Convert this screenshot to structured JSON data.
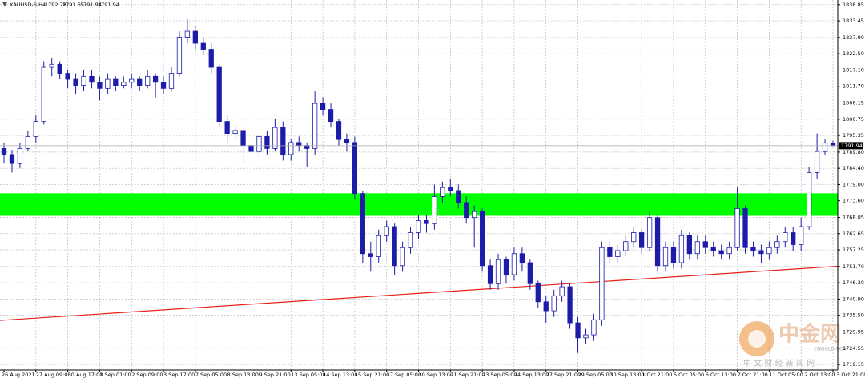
{
  "chart_data": {
    "type": "candlestick",
    "title": "XAUUSD-S,H4",
    "header_values": [
      "1792.78",
      "1793.65",
      "1791.94",
      "1791.94"
    ],
    "color": "#1c1ca8",
    "grid": true,
    "ylim": [
      1717.3,
      1840.4
    ],
    "yticks": [
      1838.85,
      1833.45,
      {
        "value": 1827.9,
        "label": "1827.90"
      },
      {
        "value": 1822.5,
        "label": "1822.50"
      },
      {
        "value": 1817.1,
        "label": "1817.10"
      },
      {
        "value": 1811.7,
        "label": "1811.70"
      },
      1806.15,
      1800.75,
      1795.35,
      {
        "value": 1789.8,
        "label": "1789.80"
      },
      {
        "value": 1784.4,
        "label": "1784.40"
      },
      {
        "value": 1779,
        "label": "1779.00"
      },
      {
        "value": 1773.6,
        "label": "1773.60"
      },
      1768.05,
      1762.65,
      1757.25,
      {
        "value": 1751.7,
        "label": "1751.70"
      },
      {
        "value": 1746.3,
        "label": "1746.30"
      },
      {
        "value": 1740.9,
        "label": "1740.90"
      },
      {
        "value": 1735.5,
        "label": "1735.50"
      },
      1729.95,
      1724.55,
      1719.15
    ],
    "categories": [
      "26 Aug 2021",
      null,
      null,
      null,
      "27 Aug 09:00",
      null,
      null,
      null,
      "30 Aug 17:00",
      null,
      null,
      null,
      "1 Sep 01:00",
      null,
      null,
      null,
      "2 Sep 09:00",
      null,
      null,
      null,
      "3 Sep 17:00",
      null,
      null,
      null,
      "7 Sep 05:00",
      null,
      null,
      null,
      "8 Sep 13:00",
      null,
      null,
      null,
      "9 Sep 21:00",
      null,
      null,
      null,
      "13 Sep 05:00",
      null,
      null,
      null,
      "14 Sep 13:00",
      null,
      null,
      null,
      "15 Sep 21:00",
      null,
      null,
      null,
      "17 Sep 05:00",
      null,
      null,
      null,
      "20 Sep 13:00",
      null,
      null,
      null,
      "21 Sep 21:00",
      null,
      null,
      null,
      "23 Sep 05:00",
      null,
      null,
      null,
      "24 Sep 13:00",
      null,
      null,
      null,
      "27 Sep 21:00",
      null,
      null,
      null,
      "29 Sep 05:00",
      null,
      null,
      null,
      "30 Sep 13:00",
      null,
      null,
      null,
      "1 Oct 21:00",
      null,
      null,
      null,
      "5 Oct 05:00",
      null,
      null,
      null,
      "6 Oct 13:00",
      null,
      null,
      null,
      "7 Oct 21:00",
      null,
      null,
      null,
      "11 Oct 05:00",
      null,
      null,
      null,
      "12 Oct 13:00",
      null,
      null,
      null,
      "13 Oct 21:00"
    ],
    "open": [
      1791,
      1789,
      1786,
      1791,
      1795,
      1800,
      1818,
      1819,
      1816,
      1814,
      1812,
      1815,
      1813,
      1811,
      1814,
      1812,
      1813,
      1814,
      1812,
      1815,
      1813,
      1811,
      1816,
      1828,
      1830,
      1826,
      1824,
      1818,
      1800,
      1796,
      1797,
      1792,
      1790,
      1795,
      1791,
      1798,
      1789,
      1793,
      1792,
      1791,
      1806,
      1804,
      1800,
      1794,
      1793,
      1776,
      1756,
      1755,
      1762,
      1765,
      1752,
      1758,
      1763,
      1767,
      1766,
      1775,
      1778,
      1777,
      1773,
      1768,
      1770,
      1752,
      1746,
      1754,
      1749,
      1756,
      1753,
      1746,
      1740,
      1737,
      1742,
      1745,
      1733,
      1728,
      1729,
      1734,
      1758,
      1755,
      1757,
      1760,
      1763,
      1758,
      1768,
      1752,
      1758,
      1753,
      1762,
      1756,
      1760,
      1758,
      1757,
      1756,
      1758,
      1771,
      1758,
      1757,
      1756,
      1758,
      1760,
      1763,
      1759,
      1765,
      1783,
      1790,
      1792.78
    ],
    "high": [
      1793,
      1790.5,
      1793,
      1797,
      1802,
      1820,
      1821,
      1820,
      1817,
      1816,
      1817,
      1817,
      1815,
      1816,
      1815,
      1815,
      1816,
      1815,
      1817,
      1816,
      1815,
      1818,
      1830,
      1834,
      1832,
      1828,
      1826,
      1819,
      1802,
      1799,
      1798,
      1795,
      1797,
      1797,
      1801,
      1800,
      1794,
      1795,
      1793,
      1810,
      1808,
      1806,
      1801,
      1796,
      1795,
      1777,
      1760,
      1764,
      1767,
      1766,
      1760,
      1765,
      1769,
      1769,
      1779,
      1780,
      1781,
      1779,
      1775,
      1772,
      1771,
      1754,
      1756,
      1755,
      1758,
      1758,
      1754,
      1747,
      1742,
      1744,
      1747,
      1746,
      1735,
      1731,
      1736,
      1760,
      1760,
      1759,
      1762,
      1765,
      1764,
      1770,
      1769,
      1760,
      1760,
      1764,
      1763,
      1762,
      1762,
      1760,
      1759,
      1760,
      1778,
      1772,
      1760,
      1759,
      1760,
      1762,
      1765,
      1765,
      1768,
      1785,
      1796,
      1794,
      1793.65
    ],
    "low": [
      1786,
      1783,
      1784.5,
      1790,
      1793,
      1799,
      1815,
      1814,
      1811,
      1809,
      1810,
      1811,
      1807,
      1809,
      1810,
      1811,
      1811,
      1810,
      1811,
      1808,
      1809,
      1810,
      1815,
      1826,
      1824,
      1822,
      1816,
      1798,
      1793,
      1794,
      1786,
      1788,
      1788,
      1789,
      1790,
      1787,
      1787,
      1790,
      1785,
      1789,
      1802,
      1798,
      1792,
      1790,
      1774,
      1753,
      1750,
      1753,
      1760,
      1749,
      1750,
      1756,
      1761,
      1763,
      1764,
      1773,
      1775,
      1771,
      1766,
      1758,
      1750,
      1744,
      1744,
      1746,
      1747,
      1750,
      1744,
      1738,
      1733,
      1735,
      1740,
      1731,
      1723,
      1726,
      1727,
      1732,
      1753,
      1753,
      1755,
      1758,
      1756,
      1757,
      1750,
      1750,
      1751,
      1751,
      1754,
      1754,
      1756,
      1755,
      1754,
      1754,
      1757,
      1756,
      1755,
      1753,
      1754,
      1756,
      1758,
      1757,
      1757,
      1764,
      1781,
      1789,
      1791.94
    ],
    "close": [
      1789,
      1786,
      1791,
      1795,
      1800,
      1818,
      1819,
      1816,
      1814,
      1812,
      1815,
      1813,
      1811,
      1814,
      1812,
      1813,
      1814,
      1812,
      1815,
      1813,
      1811,
      1816,
      1828,
      1830,
      1826,
      1824,
      1818,
      1800,
      1796,
      1797,
      1792,
      1790,
      1795,
      1791,
      1798,
      1789,
      1793,
      1792,
      1791,
      1806,
      1804,
      1800,
      1794,
      1793,
      1776,
      1756,
      1755,
      1762,
      1765,
      1752,
      1758,
      1763,
      1767,
      1766,
      1775,
      1778,
      1777,
      1773,
      1768,
      1770,
      1752,
      1746,
      1754,
      1749,
      1756,
      1753,
      1746,
      1740,
      1737,
      1742,
      1745,
      1733,
      1728,
      1729,
      1734,
      1758,
      1755,
      1757,
      1760,
      1763,
      1758,
      1768,
      1752,
      1758,
      1753,
      1762,
      1756,
      1760,
      1758,
      1757,
      1756,
      1758,
      1771,
      1758,
      1757,
      1756,
      1758,
      1760,
      1763,
      1759,
      1765,
      1783,
      1790,
      1792.78,
      1791.94
    ],
    "band": {
      "from": 1768.6,
      "to": 1776.1,
      "color": "#00ff00"
    },
    "trendline": {
      "start": 1733.8,
      "end": 1751.8,
      "color": "#e8201a"
    },
    "watermark": {
      "brand": "中金网",
      "site": "CNGOLD.COM",
      "tagline": "中 文 财 经 新 闻 网"
    }
  }
}
